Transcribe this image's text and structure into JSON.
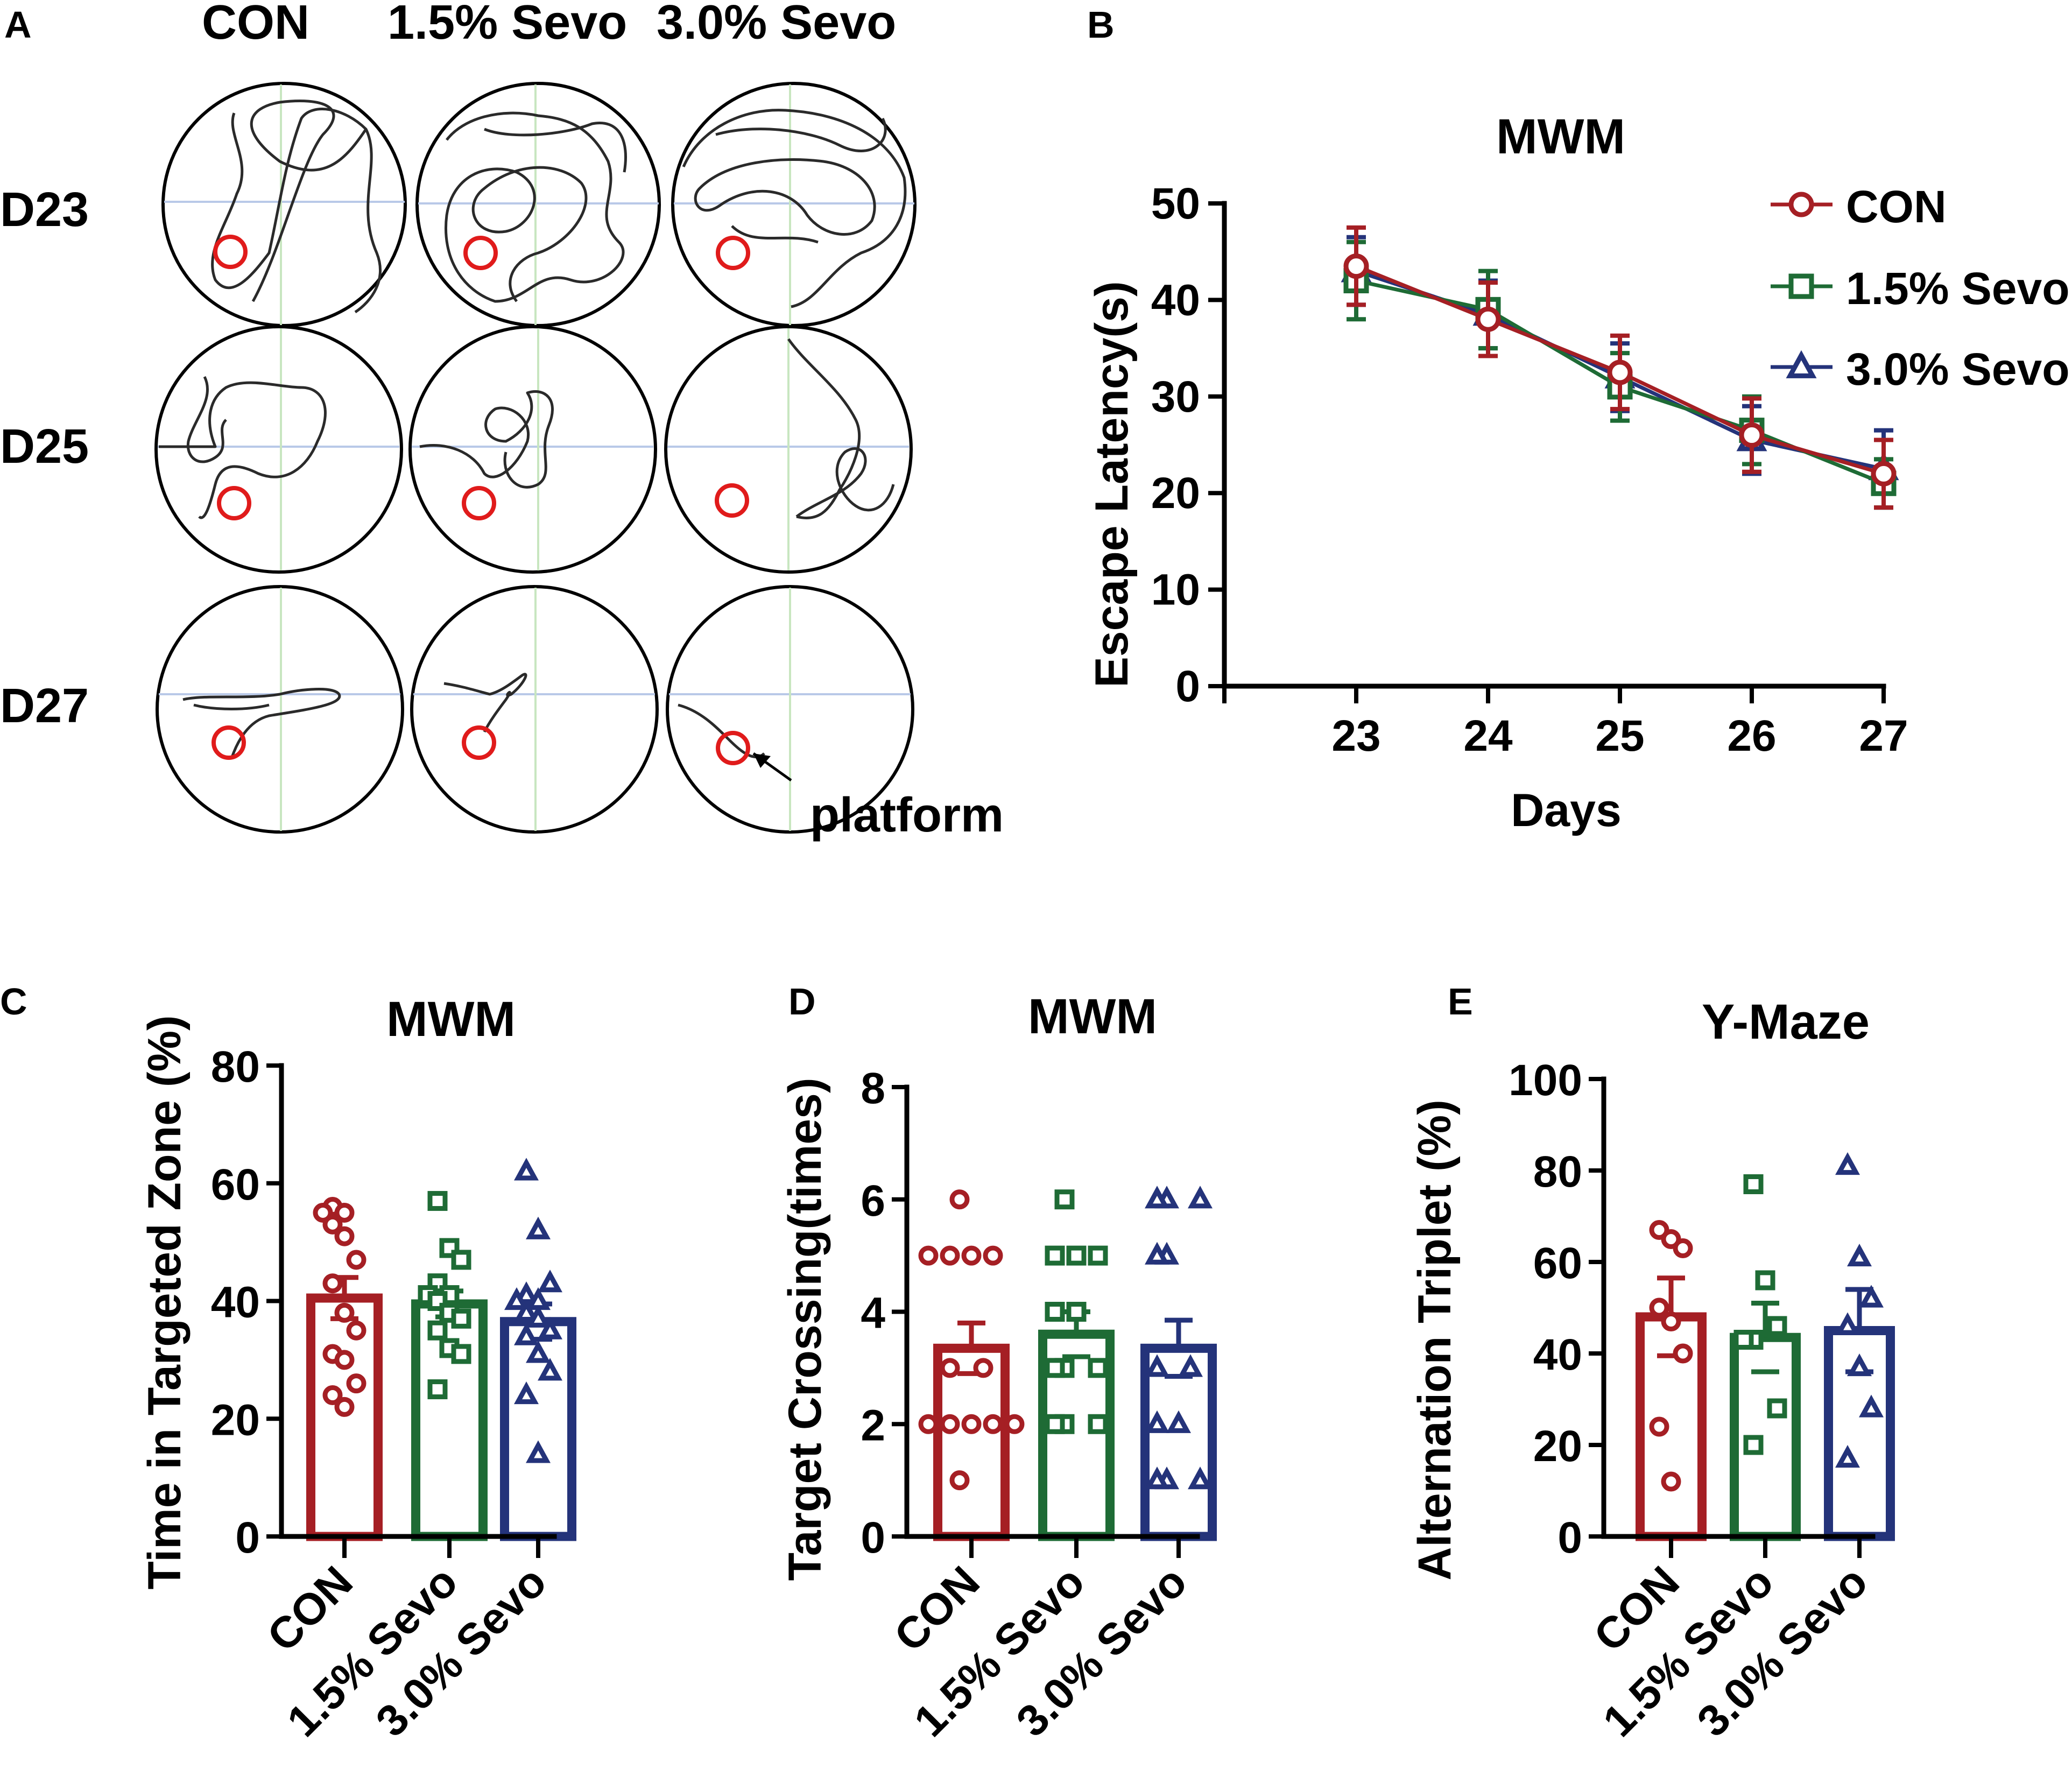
{
  "panel_letters": {
    "a": "A",
    "b": "B",
    "c": "C",
    "d": "D",
    "e": "E"
  },
  "panel_a": {
    "columns": [
      "CON",
      "1.5% Sevo",
      "3.0% Sevo"
    ],
    "rows": [
      "D23",
      "D25",
      "D27"
    ],
    "annotation": "platform"
  },
  "colors": {
    "CON": "#a51f24",
    "1.5% Sevo": "#1e6b35",
    "3.0% Sevo": "#24337a"
  },
  "chart_data": [
    {
      "id": "B",
      "type": "line",
      "title": "MWM",
      "xlabel": "Days",
      "ylabel": "Escape Latency(s)",
      "x": [
        23,
        24,
        25,
        26,
        27
      ],
      "xlim": [
        22,
        27
      ],
      "ylim": [
        0,
        50
      ],
      "yticks": [
        0,
        10,
        20,
        30,
        40,
        50
      ],
      "series": [
        {
          "name": "CON",
          "marker": "circle",
          "values": [
            43.5,
            38.0,
            32.5,
            26.0,
            22.0
          ],
          "err": [
            4.0,
            3.8,
            3.8,
            3.8,
            3.5
          ]
        },
        {
          "name": "1.5% Sevo",
          "marker": "square",
          "values": [
            42.0,
            39.0,
            31.0,
            26.5,
            21.0
          ],
          "err": [
            4.0,
            4.0,
            3.5,
            3.5,
            2.5
          ]
        },
        {
          "name": "3.0% Sevo",
          "marker": "triangle",
          "values": [
            43.0,
            38.5,
            32.0,
            25.5,
            22.5
          ],
          "err": [
            3.5,
            3.5,
            3.5,
            3.5,
            4.0
          ]
        }
      ],
      "legend_position": "top-right"
    },
    {
      "id": "C",
      "type": "bar",
      "title": "MWM",
      "ylabel": "Time in Targeted Zone (%)",
      "categories": [
        "CON",
        "1.5% Sevo",
        "3.0% Sevo"
      ],
      "ylim": [
        0,
        80
      ],
      "yticks": [
        0,
        20,
        40,
        60,
        80
      ],
      "values": [
        40.5,
        39.5,
        36.5
      ],
      "sem": [
        3.5,
        2.2,
        3.0
      ],
      "points": [
        [
          56,
          55,
          55,
          53,
          51,
          47,
          43,
          38,
          35,
          31,
          30,
          26,
          24,
          22
        ],
        [
          57,
          49,
          47,
          43,
          41,
          41,
          40,
          38,
          37,
          35,
          32,
          31,
          25
        ],
        [
          62,
          52,
          43,
          41,
          40,
          40,
          38,
          37,
          35,
          34,
          31,
          28,
          24,
          14
        ]
      ]
    },
    {
      "id": "D",
      "type": "bar",
      "title": "MWM",
      "ylabel": "Target Crossing(times)",
      "categories": [
        "CON",
        "1.5% Sevo",
        "3.0% Sevo"
      ],
      "ylim": [
        0,
        8
      ],
      "yticks": [
        0,
        2,
        4,
        6,
        8
      ],
      "values": [
        3.35,
        3.6,
        3.35
      ],
      "sem": [
        0.45,
        0.4,
        0.5
      ],
      "points": [
        [
          6,
          5,
          5,
          5,
          5,
          3,
          3,
          2,
          2,
          2,
          2,
          2,
          1
        ],
        [
          6,
          5,
          5,
          5,
          4,
          4,
          3,
          3,
          3,
          2,
          2,
          2
        ],
        [
          6,
          6,
          6,
          5,
          5,
          3,
          3,
          2,
          2,
          1,
          1,
          1
        ]
      ]
    },
    {
      "id": "E",
      "type": "bar",
      "title": "Y-Maze",
      "ylabel": "Alternation Triplet (%)",
      "categories": [
        "CON",
        "1.5% Sevo",
        "3.0% Sevo"
      ],
      "ylim": [
        0,
        100
      ],
      "yticks": [
        0,
        20,
        40,
        60,
        80,
        100
      ],
      "values": [
        48,
        43.5,
        45
      ],
      "sem": [
        8.5,
        7.5,
        9.0
      ],
      "points": [
        [
          67,
          65,
          63,
          50,
          47,
          40,
          24,
          12
        ],
        [
          77,
          56,
          46,
          43,
          43,
          28,
          20
        ],
        [
          81,
          61,
          52,
          46,
          37,
          28,
          17
        ]
      ]
    }
  ]
}
